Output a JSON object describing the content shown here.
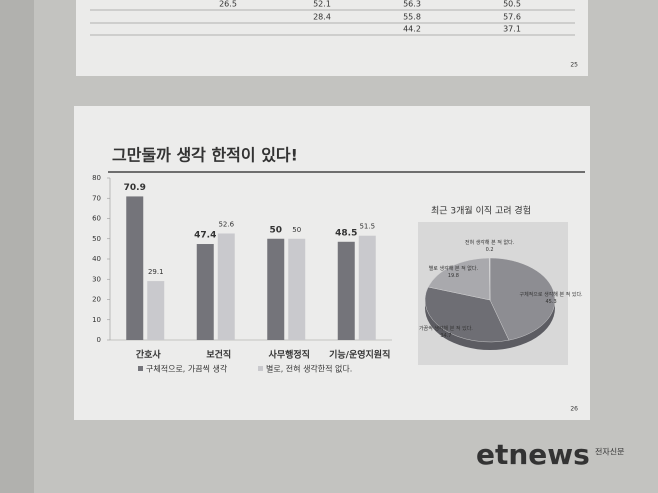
{
  "top_table": {
    "rows": [
      [
        "26.5",
        "52.1",
        "56.3",
        "50.5"
      ],
      [
        "",
        "28.4",
        "55.8",
        "57.6"
      ],
      [
        null,
        null,
        "44.2",
        "37.1"
      ]
    ],
    "page_number": "25"
  },
  "slide_page_number": "26",
  "watermark": "etnews",
  "watermark_sub": "전자신문",
  "chart_data": [
    {
      "type": "bar",
      "title": "그만둘까 생각 한적이 있다!",
      "categories": [
        "간호사",
        "보건직",
        "사무행정직",
        "기능/운영지원직"
      ],
      "series": [
        {
          "name": "구체적으로, 가끔씩 생각",
          "color": "#74747a",
          "values": [
            70.9,
            47.4,
            50,
            48.5
          ]
        },
        {
          "name": "별로, 전혀 생각한적 없다.",
          "color": "#c9c9cd",
          "values": [
            29.1,
            52.6,
            50,
            51.5
          ]
        }
      ],
      "ylim": [
        0,
        80
      ],
      "yticks": [
        0,
        10,
        20,
        30,
        40,
        50,
        60,
        70,
        80
      ],
      "grid": false
    },
    {
      "type": "pie",
      "title": "최근 3개월 이직 고려 경험",
      "categories": [
        "구체적으로 생각해 본 적 있다.",
        "가끔씩 생각해 본 적 있다.",
        "별로 생각해 본 적 없다.",
        "전혀 생각해 본 적 없다."
      ],
      "values": [
        45.3,
        34.7,
        19.8,
        0.2
      ],
      "value_labels": [
        "45.3",
        "34.7",
        "19.8",
        "0.2"
      ],
      "colors": [
        "#8d8d92",
        "#6e6e74",
        "#a9a9ad",
        "#c5c5c8"
      ]
    }
  ]
}
